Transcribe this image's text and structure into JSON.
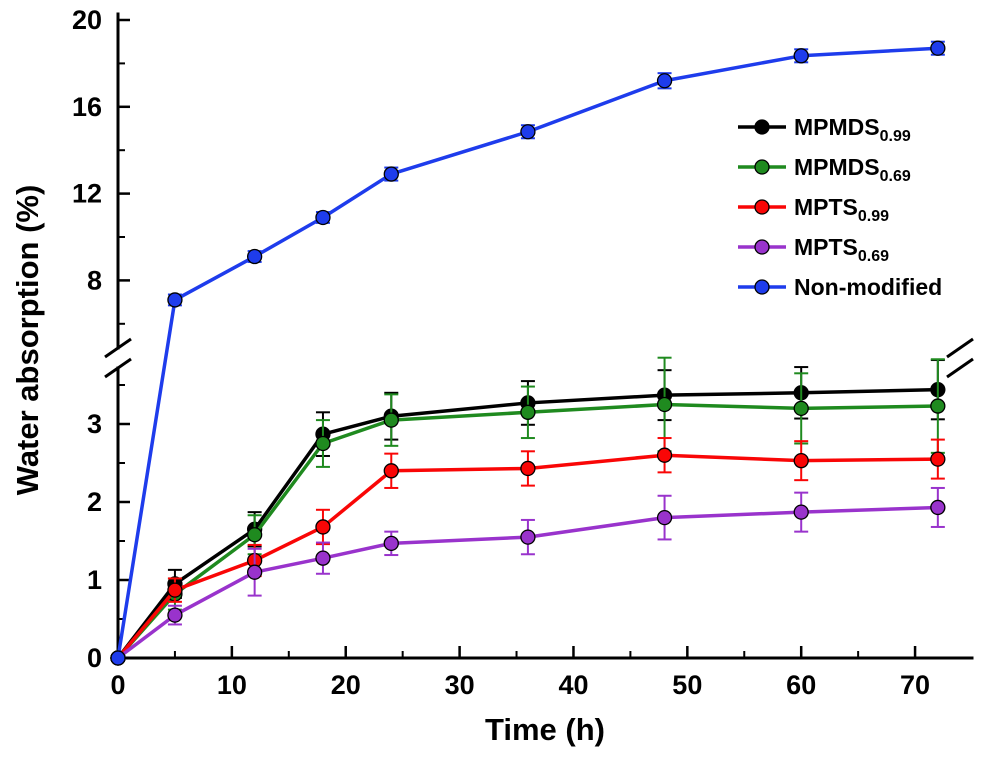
{
  "figure": {
    "background": "#ffffff"
  },
  "chart_data": {
    "type": "line",
    "title": "",
    "xlabel": "Time (h)",
    "ylabel": "Water absorption (%)",
    "grid": false,
    "legend_position": "upper-right",
    "xlim": [
      0,
      75
    ],
    "x_ticks": [
      0,
      10,
      20,
      30,
      40,
      50,
      60,
      70
    ],
    "x_minor_ticks": [
      5,
      15,
      25,
      35,
      45,
      55,
      65
    ],
    "y_axis_break": true,
    "lower_ticks": [
      0,
      1,
      2,
      3
    ],
    "lower_minor_ticks": [
      0.5,
      1.5,
      2.5,
      3.5
    ],
    "upper_ticks": [
      8,
      12,
      16,
      20
    ],
    "upper_minor_ticks": [
      6,
      10,
      14,
      18
    ],
    "upper_max": 20,
    "x": [
      0,
      5,
      12,
      18,
      24,
      36,
      48,
      60,
      72
    ],
    "series": [
      {
        "key": "mpmds-0.99",
        "label": "MPMDS",
        "label_sub": "0.99",
        "color": "#000000",
        "y": [
          0,
          0.95,
          1.65,
          2.87,
          3.1,
          3.27,
          3.37,
          3.4,
          3.44
        ],
        "err": [
          0,
          0.18,
          0.22,
          0.28,
          0.3,
          0.28,
          0.32,
          0.33,
          0.38
        ]
      },
      {
        "key": "mpmds-0.69",
        "label": "MPMDS",
        "label_sub": "0.69",
        "color": "#1f8a1f",
        "y": [
          0,
          0.82,
          1.58,
          2.75,
          3.05,
          3.15,
          3.25,
          3.2,
          3.23
        ],
        "err": [
          0,
          0.2,
          0.25,
          0.3,
          0.33,
          0.33,
          0.6,
          0.45,
          0.6
        ]
      },
      {
        "key": "mpts-0.99",
        "label": "MPTS",
        "label_sub": "0.99",
        "color": "#f90606",
        "y": [
          0,
          0.87,
          1.25,
          1.68,
          2.4,
          2.43,
          2.6,
          2.53,
          2.55
        ],
        "err": [
          0,
          0.15,
          0.2,
          0.22,
          0.22,
          0.22,
          0.22,
          0.25,
          0.25
        ]
      },
      {
        "key": "mpts-0.69",
        "label": "MPTS",
        "label_sub": "0.69",
        "color": "#9933cc",
        "y": [
          0,
          0.55,
          1.1,
          1.28,
          1.47,
          1.55,
          1.8,
          1.87,
          1.93
        ],
        "err": [
          0,
          0.12,
          0.3,
          0.2,
          0.15,
          0.22,
          0.28,
          0.25,
          0.25
        ]
      },
      {
        "key": "non-modified",
        "label": "Non-modified",
        "label_sub": "",
        "color": "#1e3cec",
        "y": [
          0,
          7.1,
          9.1,
          10.9,
          12.9,
          14.85,
          17.2,
          18.35,
          18.7
        ],
        "err": [
          0,
          0.25,
          0.25,
          0.25,
          0.3,
          0.3,
          0.35,
          0.3,
          0.3
        ]
      }
    ]
  }
}
